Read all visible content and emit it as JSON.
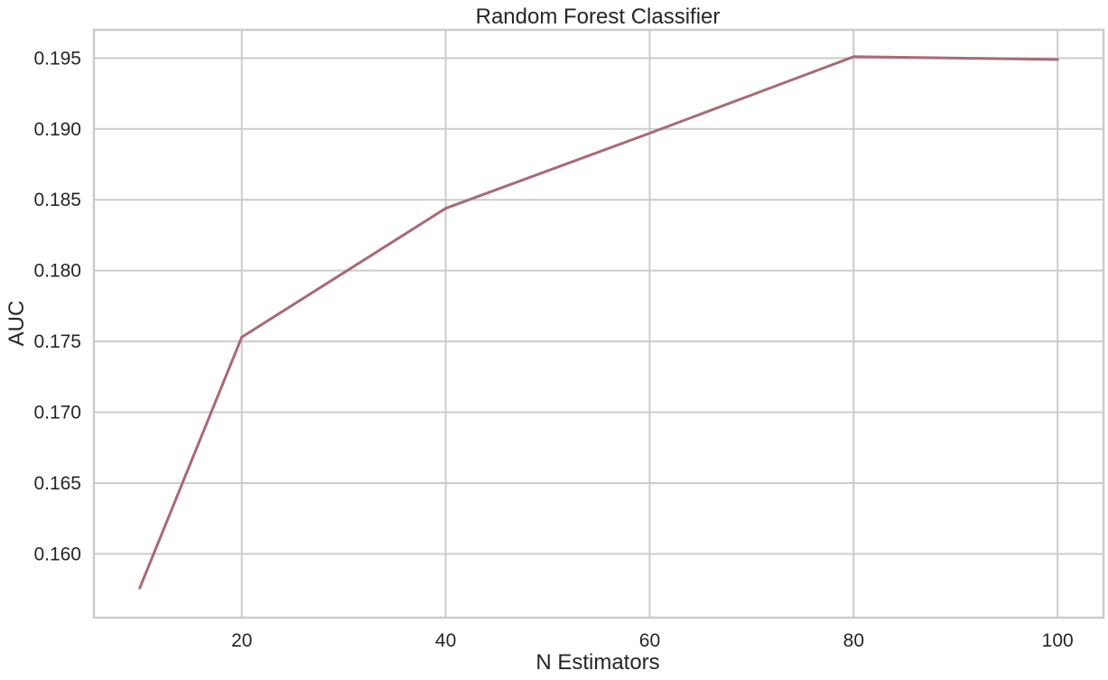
{
  "chart_data": {
    "type": "line",
    "title": "Random Forest Classifier",
    "xlabel": "N Estimators",
    "ylabel": "AUC",
    "x": [
      10,
      20,
      40,
      60,
      80,
      100
    ],
    "series": [
      {
        "values": [
          0.1576,
          0.1753,
          0.1844,
          0.1897,
          0.1951,
          0.1949
        ],
        "color": "#a86a76"
      }
    ],
    "xlim": [
      5.5,
      104.5
    ],
    "ylim": [
      0.1555,
      0.197
    ],
    "xticks": [
      20,
      40,
      60,
      80,
      100
    ],
    "xtick_labels": [
      "20",
      "40",
      "60",
      "80",
      "100"
    ],
    "yticks": [
      0.16,
      0.165,
      0.17,
      0.175,
      0.18,
      0.185,
      0.19,
      0.195
    ],
    "ytick_labels": [
      "0.160",
      "0.165",
      "0.170",
      "0.175",
      "0.180",
      "0.185",
      "0.190",
      "0.195"
    ],
    "grid": true,
    "legend": false
  }
}
